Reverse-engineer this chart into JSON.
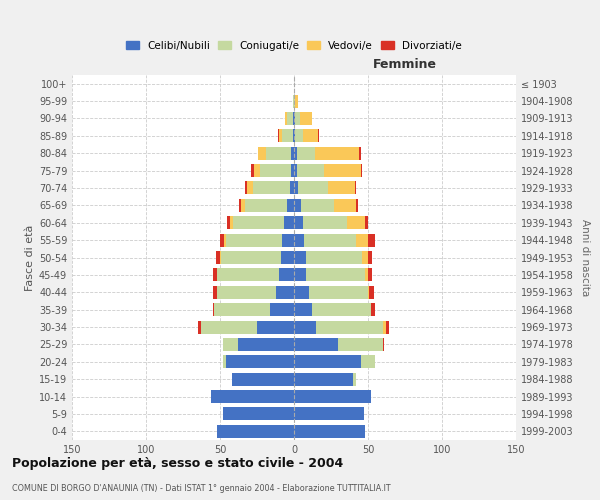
{
  "age_groups": [
    "0-4",
    "5-9",
    "10-14",
    "15-19",
    "20-24",
    "25-29",
    "30-34",
    "35-39",
    "40-44",
    "45-49",
    "50-54",
    "55-59",
    "60-64",
    "65-69",
    "70-74",
    "75-79",
    "80-84",
    "85-89",
    "90-94",
    "95-99",
    "100+"
  ],
  "birth_years": [
    "1999-2003",
    "1994-1998",
    "1989-1993",
    "1984-1988",
    "1979-1983",
    "1974-1978",
    "1969-1973",
    "1964-1968",
    "1959-1963",
    "1954-1958",
    "1949-1953",
    "1944-1948",
    "1939-1943",
    "1934-1938",
    "1929-1933",
    "1924-1928",
    "1919-1923",
    "1914-1918",
    "1909-1913",
    "1904-1908",
    "≤ 1903"
  ],
  "male": {
    "celibi": [
      52,
      48,
      56,
      42,
      46,
      38,
      25,
      16,
      12,
      10,
      9,
      8,
      7,
      5,
      3,
      2,
      2,
      1,
      1,
      0,
      0
    ],
    "coniugati": [
      0,
      0,
      0,
      0,
      2,
      10,
      38,
      38,
      40,
      42,
      40,
      38,
      34,
      28,
      25,
      21,
      17,
      7,
      4,
      1,
      0
    ],
    "vedovi": [
      0,
      0,
      0,
      0,
      0,
      0,
      0,
      0,
      0,
      0,
      1,
      1,
      2,
      3,
      4,
      4,
      5,
      2,
      1,
      0,
      0
    ],
    "divorziati": [
      0,
      0,
      0,
      0,
      0,
      0,
      2,
      1,
      3,
      3,
      3,
      3,
      2,
      1,
      1,
      2,
      0,
      1,
      0,
      0,
      0
    ]
  },
  "female": {
    "nubili": [
      48,
      47,
      52,
      40,
      45,
      30,
      15,
      12,
      10,
      8,
      8,
      7,
      6,
      5,
      3,
      2,
      2,
      1,
      1,
      0,
      0
    ],
    "coniugate": [
      0,
      0,
      0,
      2,
      10,
      30,
      45,
      40,
      40,
      40,
      38,
      35,
      30,
      22,
      20,
      18,
      12,
      5,
      3,
      1,
      0
    ],
    "vedove": [
      0,
      0,
      0,
      0,
      0,
      0,
      2,
      0,
      1,
      2,
      4,
      8,
      12,
      15,
      18,
      25,
      30,
      10,
      8,
      2,
      0
    ],
    "divorziate": [
      0,
      0,
      0,
      0,
      0,
      1,
      2,
      3,
      3,
      3,
      3,
      5,
      2,
      1,
      1,
      1,
      1,
      1,
      0,
      0,
      0
    ]
  },
  "colors": {
    "celibi": "#4472C4",
    "coniugati": "#C5D9A0",
    "vedovi": "#FAC858",
    "divorziati": "#D93025"
  },
  "title": "Popolazione per età, sesso e stato civile - 2004",
  "subtitle": "COMUNE DI BORGO D'ANAUNIA (TN) - Dati ISTAT 1° gennaio 2004 - Elaborazione TUTTITALIA.IT",
  "xlabel_right": "Femmine",
  "ylabel_left": "Fasce di età",
  "ylabel_right": "Anni di nascita",
  "xlim": 150,
  "legend_labels": [
    "Celibi/Nubili",
    "Coniugati/e",
    "Vedovi/e",
    "Divorziati/e"
  ],
  "bg_color": "#f0f0f0",
  "plot_bg": "#ffffff"
}
